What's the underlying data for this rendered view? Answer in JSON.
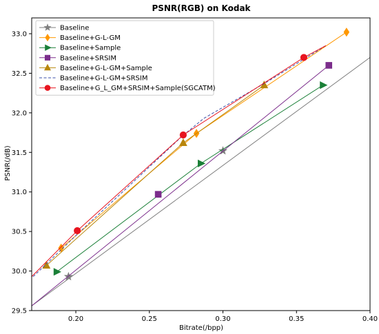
{
  "chart_data": {
    "type": "line",
    "title": "PSNR(RGB) on Kodak",
    "xlabel": "Bitrate(/bpp)",
    "ylabel": "PSNR(/dB)",
    "xlim": [
      0.17,
      0.4
    ],
    "ylim": [
      29.5,
      33.2
    ],
    "xticks": [
      0.2,
      0.25,
      0.3,
      0.35,
      0.4
    ],
    "xtick_labels": [
      "0.20",
      "0.25",
      "0.30",
      "0.35",
      "0.40"
    ],
    "yticks": [
      29.5,
      30.0,
      30.5,
      31.0,
      31.5,
      32.0,
      32.5,
      33.0
    ],
    "ytick_labels": [
      "29.5",
      "30.0",
      "30.5",
      "31.0",
      "31.5",
      "32.0",
      "32.5",
      "33.0"
    ],
    "legend_position": "top-left",
    "series": [
      {
        "name": "Baseline",
        "color": "#7f7f7f",
        "marker": "star",
        "line": "solid",
        "x": [
          0.195,
          0.3
        ],
        "y": [
          29.93,
          31.52
        ],
        "line_x": [
          0.17,
          0.4
        ],
        "line_y": [
          29.56,
          32.7
        ]
      },
      {
        "name": "Baseline+G-L-GM",
        "color": "#ff9800",
        "marker": "diamond",
        "line": "solid",
        "x": [
          0.19,
          0.282,
          0.384
        ],
        "y": [
          30.29,
          31.74,
          33.02
        ]
      },
      {
        "name": "Baseline+Sample",
        "color": "#1a7f37",
        "marker": "triangle-right",
        "line": "solid",
        "x": [
          0.187,
          0.285,
          0.368
        ],
        "y": [
          29.99,
          31.36,
          32.35
        ]
      },
      {
        "name": "Baseline+SRSIM",
        "color": "#7b2d8b",
        "marker": "square",
        "line": "solid",
        "x": [
          0.256,
          0.372
        ],
        "y": [
          30.97,
          32.6
        ],
        "line_x": [
          0.17,
          0.372
        ],
        "line_y": [
          29.56,
          32.6
        ]
      },
      {
        "name": "Baseline+G-L-GM+Sample",
        "color": "#b8860b",
        "marker": "triangle-up",
        "line": "solid",
        "x": [
          0.18,
          0.273,
          0.328
        ],
        "y": [
          30.07,
          31.62,
          32.35
        ]
      },
      {
        "name": "Baseline+G-L-GM+SRSIM",
        "color": "#3b4fa8",
        "marker": "none",
        "line": "dashed",
        "x": [
          0.171,
          0.199,
          0.272,
          0.287,
          0.329,
          0.37
        ],
        "y": [
          29.93,
          30.43,
          31.7,
          31.93,
          32.38,
          32.85
        ]
      },
      {
        "name": "Baseline+G_L_GM+SRSIM+Sample(SGCATM)",
        "color": "#e8141f",
        "marker": "circle",
        "line": "solid",
        "x": [
          0.201,
          0.273,
          0.355
        ],
        "y": [
          30.51,
          31.72,
          32.7
        ],
        "line_x": [
          0.17,
          0.201,
          0.273,
          0.355,
          0.37
        ],
        "line_y": [
          29.93,
          30.51,
          31.72,
          32.7,
          32.85
        ]
      }
    ]
  }
}
